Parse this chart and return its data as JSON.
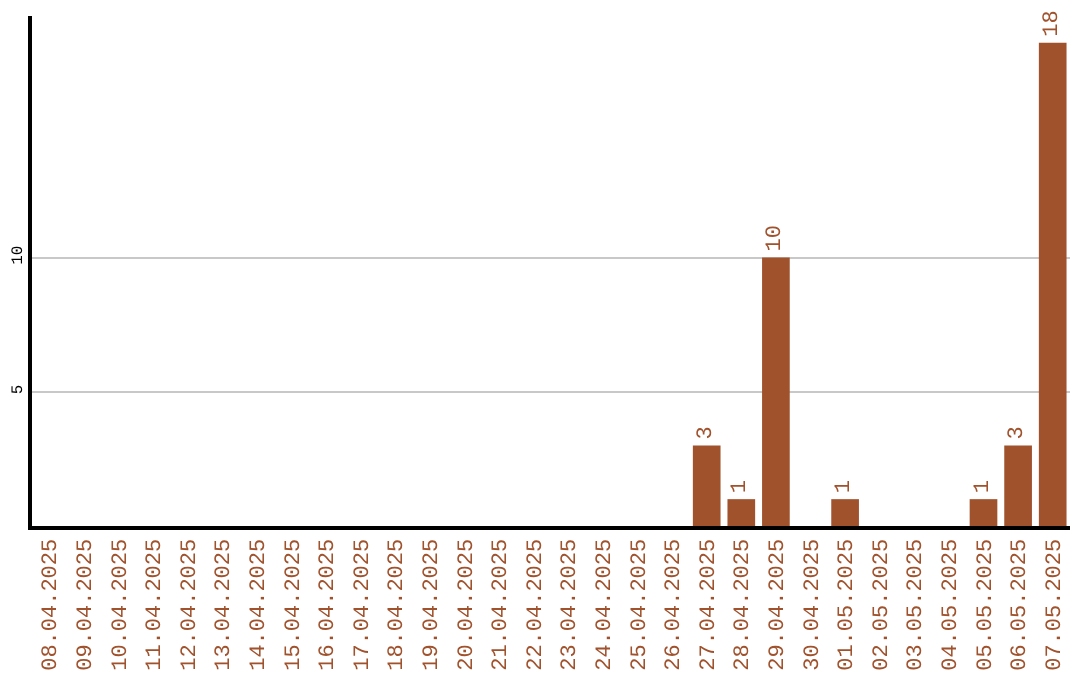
{
  "chart_data": {
    "type": "bar",
    "categories": [
      "08.04.2025",
      "09.04.2025",
      "10.04.2025",
      "11.04.2025",
      "12.04.2025",
      "13.04.2025",
      "14.04.2025",
      "15.04.2025",
      "16.04.2025",
      "17.04.2025",
      "18.04.2025",
      "19.04.2025",
      "20.04.2025",
      "21.04.2025",
      "22.04.2025",
      "23.04.2025",
      "24.04.2025",
      "25.04.2025",
      "26.04.2025",
      "27.04.2025",
      "28.04.2025",
      "29.04.2025",
      "30.04.2025",
      "01.05.2025",
      "02.05.2025",
      "03.05.2025",
      "04.05.2025",
      "05.05.2025",
      "06.05.2025",
      "07.05.2025"
    ],
    "values": [
      0,
      0,
      0,
      0,
      0,
      0,
      0,
      0,
      0,
      0,
      0,
      0,
      0,
      0,
      0,
      0,
      0,
      0,
      0,
      3,
      1,
      10,
      0,
      1,
      0,
      0,
      0,
      1,
      3,
      18
    ],
    "value_labels": [
      null,
      null,
      null,
      null,
      null,
      null,
      null,
      null,
      null,
      null,
      null,
      null,
      null,
      null,
      null,
      null,
      null,
      null,
      null,
      "3",
      "1",
      "10",
      null,
      "1",
      null,
      null,
      null,
      "1",
      "3",
      "18"
    ],
    "color": "#a0522d",
    "ylim": [
      0,
      19
    ],
    "yticks": [
      5,
      10
    ],
    "grid": "y",
    "legend": false
  }
}
